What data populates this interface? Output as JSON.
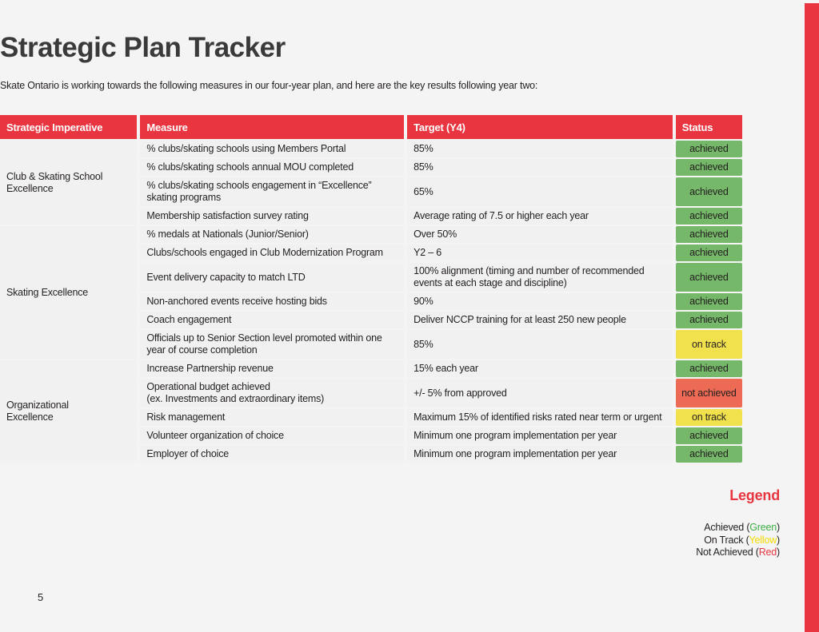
{
  "page": {
    "title": "Strategic Plan Tracker",
    "intro": "Skate Ontario is working towards the following measures in our four-year plan, and here are the key results following year two:",
    "page_number": "5"
  },
  "table": {
    "headers": [
      "Strategic Imperative",
      "Measure",
      "Target (Y4)",
      "Status"
    ],
    "status_labels": {
      "achieved": "achieved",
      "on_track": "on track",
      "not_achieved": "not achieved"
    },
    "groups": [
      {
        "id": "club-skating-school-excellence",
        "label": "Club & Skating School Excellence",
        "rows": [
          {
            "measure": "% clubs/skating schools using Members Portal",
            "target": "85%",
            "status": "achieved"
          },
          {
            "measure": "% clubs/skating schools annual MOU completed",
            "target": "85%",
            "status": "achieved"
          },
          {
            "measure": "% clubs/skating schools engagement in “Excellence” skating programs",
            "target": "65%",
            "status": "achieved"
          },
          {
            "measure": "Membership satisfaction survey rating",
            "target": "Average rating of 7.5 or higher each year",
            "status": "achieved"
          }
        ]
      },
      {
        "id": "skating-excellence",
        "label": "Skating Excellence",
        "rows": [
          {
            "measure": "% medals at Nationals (Junior/Senior)",
            "target": "Over 50%",
            "status": "achieved"
          },
          {
            "measure": "Clubs/schools engaged in Club Modernization Program",
            "target": "Y2 – 6",
            "status": "achieved"
          },
          {
            "measure": "Event delivery capacity to match LTD",
            "target": "100% alignment (timing  and number of recommended events at each stage and discipline)",
            "status": "achieved"
          },
          {
            "measure": "Non-anchored events receive hosting bids",
            "target": "90%",
            "status": "achieved"
          },
          {
            "measure": "Coach engagement",
            "target": "Deliver NCCP training for at least 250 new people",
            "status": "achieved"
          },
          {
            "measure": "Officials up to Senior Section level promoted within one year of course completion",
            "target": "85%",
            "status": "on_track"
          }
        ]
      },
      {
        "id": "organizational-excellence",
        "label": "Organizational Excellence",
        "rows": [
          {
            "measure": "Increase Partnership revenue",
            "target": "15% each year",
            "status": "achieved"
          },
          {
            "measure": "Operational budget achieved\n(ex. Investments and extraordinary items)",
            "target": "+/- 5% from approved",
            "status": "not_achieved"
          },
          {
            "measure": "Risk management",
            "target": "Maximum 15% of identified risks rated near term or urgent",
            "status": "on_track"
          },
          {
            "measure": "Volunteer organization of choice",
            "target": "Minimum one program implementation per year",
            "status": "achieved"
          },
          {
            "measure": "Employer of choice",
            "target": "Minimum one program implementation per year",
            "status": "achieved"
          }
        ]
      }
    ]
  },
  "legend": {
    "title": "Legend",
    "items": [
      {
        "prefix": "Achieved (",
        "color_word": "Green",
        "suffix": ")"
      },
      {
        "prefix": "On Track (",
        "color_word": "Yellow",
        "suffix": ")"
      },
      {
        "prefix": "Not Achieved (",
        "color_word": "Red",
        "suffix": ")"
      }
    ]
  },
  "colors": {
    "accent_red": "#e8353f",
    "badge_green": "#76b869",
    "badge_yellow": "#f1e24d",
    "badge_red": "#ed6a55",
    "legend_green": "#3faf46",
    "legend_yellow": "#f2dc00",
    "legend_red": "#e8353f",
    "row_background": "#f1f1f1",
    "page_background": "#f4f4f4"
  }
}
